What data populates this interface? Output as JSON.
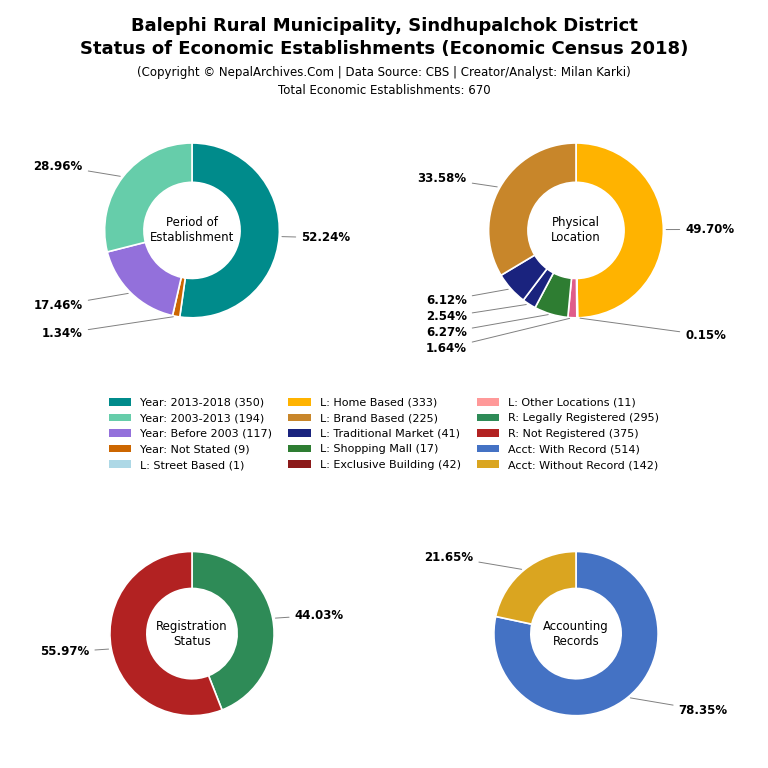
{
  "title": [
    "Balephi Rural Municipality, Sindhupalchok District",
    "Status of Economic Establishments (Economic Census 2018)"
  ],
  "subtitle": [
    "(Copyright © NepalArchives.Com | Data Source: CBS | Creator/Analyst: Milan Karki)",
    "Total Economic Establishments: 670"
  ],
  "legend_entries": [
    {
      "name": "Year: 2013-2018 (350)",
      "color": "#008B8B"
    },
    {
      "name": "Year: 2003-2013 (194)",
      "color": "#66CDAA"
    },
    {
      "name": "Year: Before 2003 (117)",
      "color": "#9370DB"
    },
    {
      "name": "Year: Not Stated (9)",
      "color": "#CC6600"
    },
    {
      "name": "L: Street Based (1)",
      "color": "#ADD8E6"
    },
    {
      "name": "L: Home Based (333)",
      "color": "#FFB300"
    },
    {
      "name": "L: Brand Based (225)",
      "color": "#C8862A"
    },
    {
      "name": "L: Traditional Market (41)",
      "color": "#1A237E"
    },
    {
      "name": "L: Shopping Mall (17)",
      "color": "#2E7D32"
    },
    {
      "name": "L: Exclusive Building (42)",
      "color": "#8B1A1A"
    },
    {
      "name": "L: Other Locations (11)",
      "color": "#FF9999"
    },
    {
      "name": "R: Legally Registered (295)",
      "color": "#2E8B57"
    },
    {
      "name": "R: Not Registered (375)",
      "color": "#B22222"
    },
    {
      "name": "Acct: With Record (514)",
      "color": "#4472C4"
    },
    {
      "name": "Acct: Without Record (142)",
      "color": "#DAA520"
    }
  ],
  "chart_data": [
    {
      "type": "pie",
      "title": "Period of\nEstablishment",
      "values": [
        52.24,
        1.34,
        17.46,
        28.96
      ],
      "value_labels": [
        "52.24%",
        "1.34%",
        "17.46%",
        "28.96%"
      ],
      "colors": [
        "#008B8B",
        "#CC6600",
        "#9370DB",
        "#66CDAA"
      ],
      "data_labels": true
    },
    {
      "type": "pie",
      "title": "Physical\nLocation",
      "values": [
        49.7,
        0.15,
        1.64,
        6.27,
        2.54,
        6.12,
        33.58
      ],
      "value_labels": [
        "49.70%",
        "0.15%",
        "1.64%",
        "6.27%",
        "2.54%",
        "6.12%",
        "33.58%"
      ],
      "colors": [
        "#FFB300",
        "#ADD8E6",
        "#E05C8A",
        "#2E7D32",
        "#1A237E",
        "#1A237E",
        "#C8862A"
      ],
      "data_labels": true
    },
    {
      "type": "pie",
      "title": "Registration\nStatus",
      "values": [
        44.03,
        55.97
      ],
      "value_labels": [
        "44.03%",
        "55.97%"
      ],
      "colors": [
        "#2E8B57",
        "#B22222"
      ],
      "data_labels": true
    },
    {
      "type": "pie",
      "title": "Accounting\nRecords",
      "values": [
        78.35,
        21.65
      ],
      "value_labels": [
        "78.35%",
        "21.65%"
      ],
      "colors": [
        "#4472C4",
        "#DAA520"
      ],
      "data_labels": true
    }
  ]
}
